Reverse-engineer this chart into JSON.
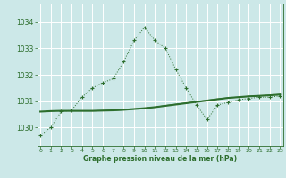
{
  "xlabel": "Graphe pression niveau de la mer (hPa)",
  "bg_color": "#cce8e8",
  "grid_color": "#ffffff",
  "line_color": "#2d6e2d",
  "x_ticks": [
    0,
    1,
    2,
    3,
    4,
    5,
    6,
    7,
    8,
    9,
    10,
    11,
    12,
    13,
    14,
    15,
    16,
    17,
    18,
    19,
    20,
    21,
    22,
    23
  ],
  "y_ticks": [
    1030,
    1031,
    1032,
    1033,
    1034
  ],
  "ylim": [
    1029.3,
    1034.7
  ],
  "xlim": [
    -0.3,
    23.3
  ],
  "series1_x": [
    0,
    1,
    2,
    3,
    4,
    5,
    6,
    7,
    8,
    9,
    10,
    11,
    12,
    13,
    14,
    15,
    16,
    17,
    18,
    19,
    20,
    21,
    22,
    23
  ],
  "series1_y": [
    1029.7,
    1030.0,
    1030.6,
    1030.65,
    1031.15,
    1031.5,
    1031.7,
    1031.85,
    1032.5,
    1033.3,
    1033.8,
    1033.3,
    1033.0,
    1032.2,
    1031.5,
    1030.85,
    1030.3,
    1030.85,
    1030.95,
    1031.05,
    1031.1,
    1031.15,
    1031.15,
    1031.2
  ],
  "series2_x": [
    0,
    1,
    2,
    3,
    4,
    5,
    6,
    7,
    8,
    9,
    10,
    11,
    12,
    13,
    14,
    15,
    16,
    17,
    18,
    19,
    20,
    21,
    22,
    23
  ],
  "series2_y": [
    1030.6,
    1030.62,
    1030.63,
    1030.63,
    1030.63,
    1030.63,
    1030.64,
    1030.65,
    1030.67,
    1030.7,
    1030.73,
    1030.77,
    1030.82,
    1030.87,
    1030.92,
    1030.97,
    1031.02,
    1031.07,
    1031.12,
    1031.15,
    1031.18,
    1031.2,
    1031.22,
    1031.25
  ],
  "series3_x": [
    2,
    3,
    4,
    5,
    6,
    7,
    8,
    9,
    10,
    11,
    12,
    13,
    14,
    15,
    16,
    17,
    18,
    19,
    20,
    21,
    22,
    23
  ],
  "series3_y": [
    1030.63,
    1030.63,
    1030.63,
    1030.63,
    1030.64,
    1030.65,
    1030.67,
    1030.7,
    1030.73,
    1030.77,
    1030.83,
    1030.88,
    1030.93,
    1030.98,
    1031.03,
    1031.08,
    1031.12,
    1031.15,
    1031.18,
    1031.2,
    1031.22,
    1031.25
  ]
}
